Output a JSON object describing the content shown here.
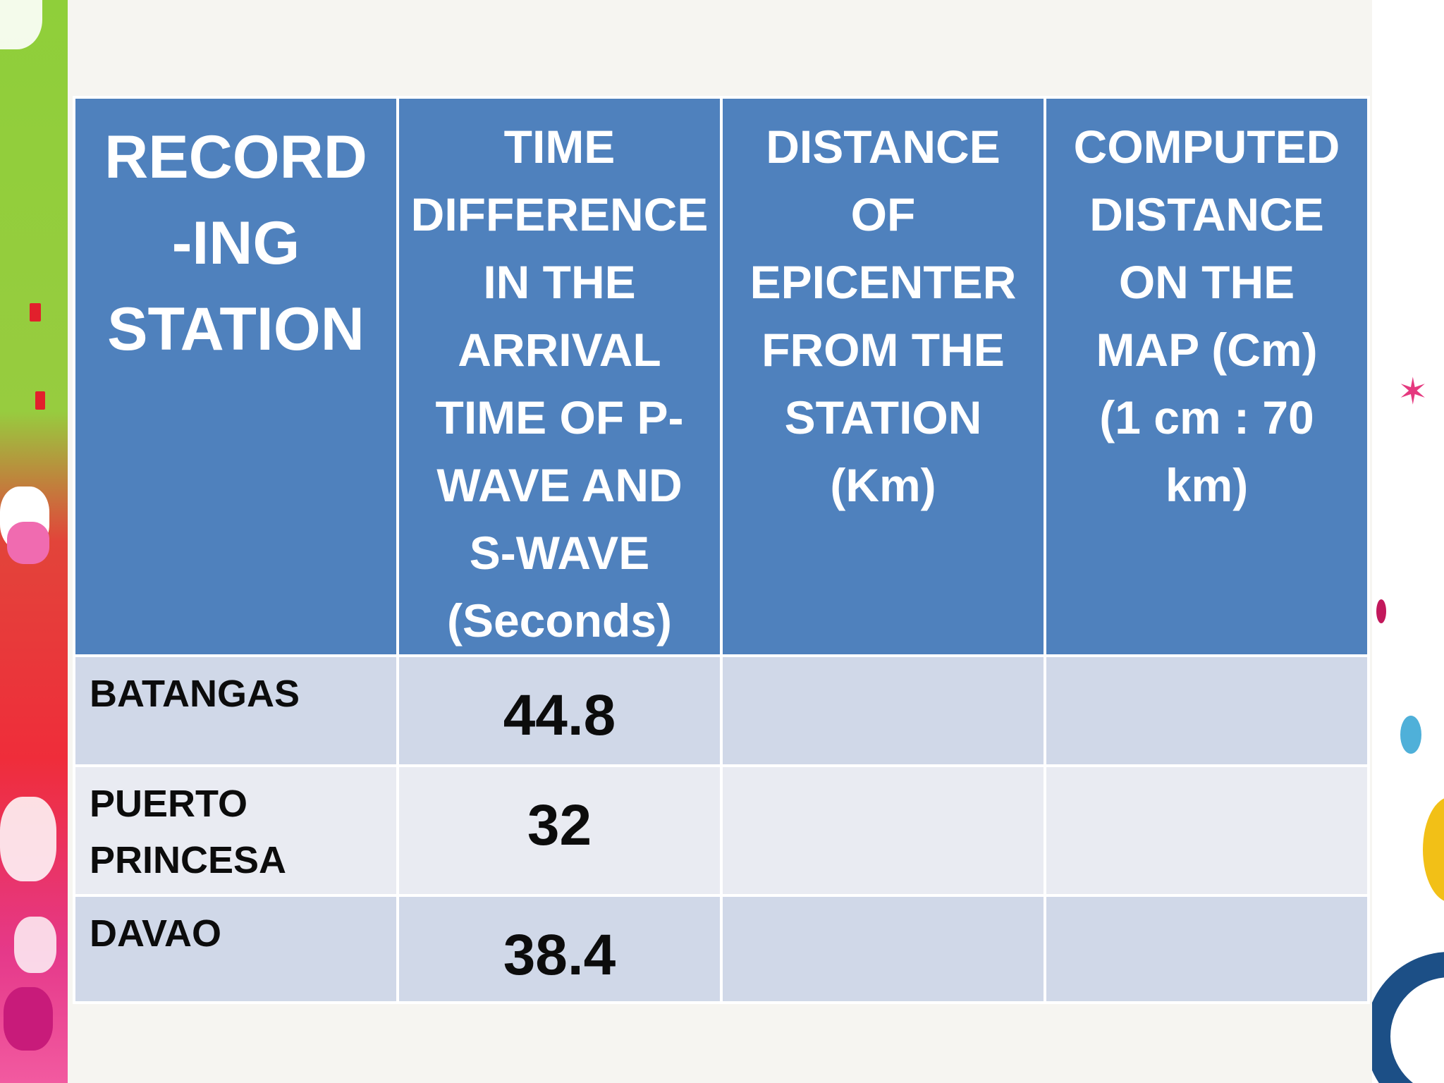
{
  "table": {
    "headers": [
      "RECORD\n-ING\nSTATION",
      "TIME\nDIFFERENCE\nIN THE\nARRIVAL\nTIME OF P-\nWAVE AND\nS-WAVE\n(Seconds)",
      "DISTANCE\nOF\nEPICENTER\nFROM THE\nSTATION\n(Km)",
      "COMPUTED\nDISTANCE\nON THE\nMAP (Cm)\n(1 cm : 70\nkm)"
    ],
    "rows": [
      {
        "station": "BATANGAS",
        "time_difference": "44.8",
        "distance_km": "",
        "map_distance_cm": ""
      },
      {
        "station": "PUERTO\nPRINCESA",
        "time_difference": "32",
        "distance_km": "",
        "map_distance_cm": ""
      },
      {
        "station": "DAVAO",
        "time_difference": "38.4",
        "distance_km": "",
        "map_distance_cm": ""
      }
    ]
  },
  "colors": {
    "header_bg": "#4f81bd",
    "row_dark": "#d0d8e8",
    "row_light": "#e9ebf2",
    "background": "#f6f5f1"
  }
}
